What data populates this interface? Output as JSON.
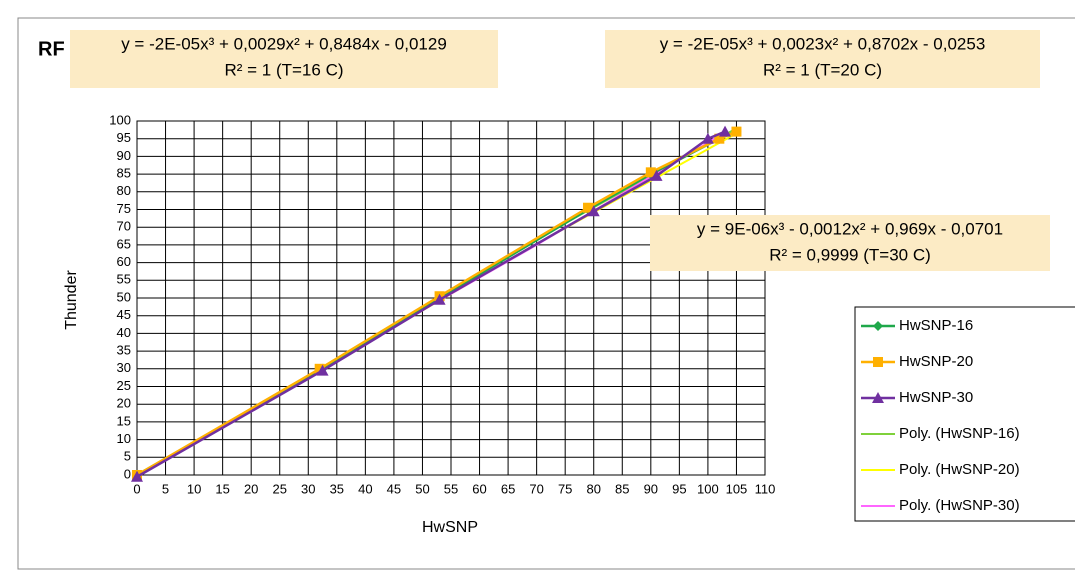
{
  "chart_data": {
    "type": "line",
    "title": "RF",
    "xlabel": "HwSNP",
    "ylabel": "Thunder",
    "annotations": [
      {
        "lines": [
          "y = -2E-05x³ + 0,0029x² + 0,8484x - 0,0129",
          "R² = 1 (T=16 C)"
        ]
      },
      {
        "lines": [
          "y = -2E-05x³ + 0,0023x² + 0,8702x - 0,0253",
          "R² = 1 (T=20 C)"
        ]
      },
      {
        "lines": [
          "y = 9E-06x³ - 0,0012x² + 0,969x - 0,0701",
          "R² = 0,9999 (T=30 C)"
        ]
      }
    ],
    "xlim": [
      0,
      110
    ],
    "ylim": [
      0,
      100
    ],
    "xticks": [
      0,
      5,
      10,
      15,
      20,
      25,
      30,
      35,
      40,
      45,
      50,
      55,
      60,
      65,
      70,
      75,
      80,
      85,
      90,
      95,
      100,
      105,
      110
    ],
    "yticks": [
      0,
      5,
      10,
      15,
      20,
      25,
      30,
      35,
      40,
      45,
      50,
      55,
      60,
      65,
      70,
      75,
      80,
      85,
      90,
      95,
      100
    ],
    "grid": true,
    "legend": "right",
    "series": [
      {
        "name": "HwSNP-16",
        "color": "#1fa84a",
        "marker": "diamond",
        "x": [
          0,
          32.5,
          53,
          79,
          90,
          102,
          105
        ],
        "values": [
          0,
          30,
          50,
          75,
          85,
          95,
          97
        ]
      },
      {
        "name": "HwSNP-20",
        "color": "#ffb000",
        "marker": "square",
        "x": [
          0,
          32,
          53,
          79,
          90,
          102,
          105
        ],
        "values": [
          0,
          30,
          50.5,
          75.5,
          85.5,
          95,
          97
        ]
      },
      {
        "name": "HwSNP-30",
        "color": "#7030a0",
        "marker": "triangle",
        "x": [
          0,
          32.5,
          53,
          80,
          91,
          100,
          103
        ],
        "values": [
          -0.5,
          29.5,
          49.5,
          74.5,
          84.5,
          95,
          97
        ]
      },
      {
        "name": "Poly. (HwSNP-16)",
        "color": "#7fd13b",
        "x": [
          0,
          35,
          70,
          105
        ],
        "values": [
          0,
          32.4,
          66.7,
          97.9
        ]
      },
      {
        "name": "Poly. (HwSNP-20)",
        "color": "#ffff00",
        "x": [
          0,
          35,
          70,
          105
        ],
        "values": [
          0,
          32.4,
          65.3,
          96.5
        ]
      },
      {
        "name": "Poly. (HwSNP-30)",
        "color": "#ff66ff",
        "x": [
          0,
          35,
          70,
          103
        ],
        "values": [
          0,
          32.8,
          65.0,
          96.8
        ]
      }
    ]
  }
}
